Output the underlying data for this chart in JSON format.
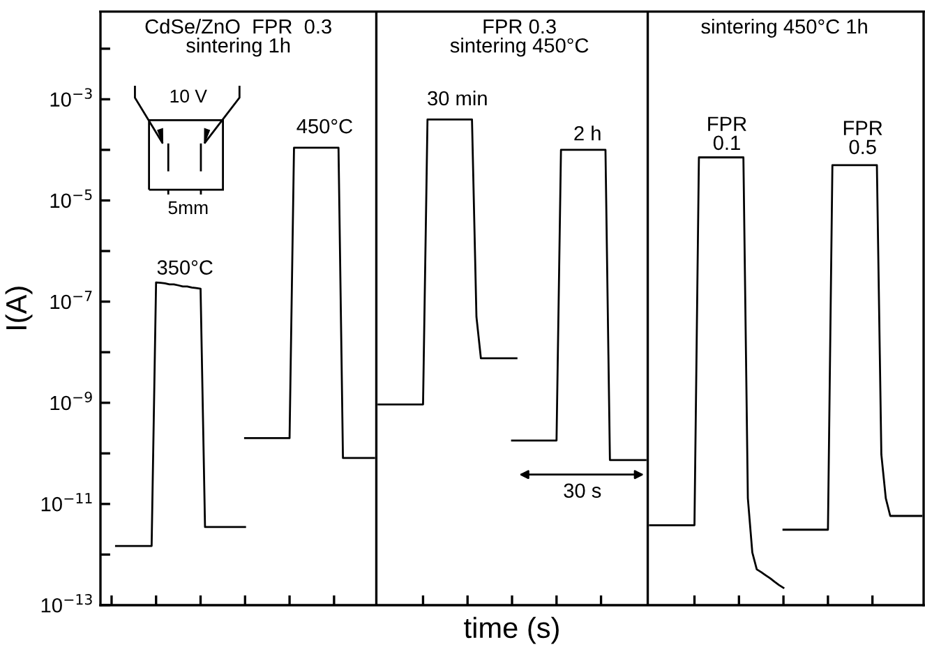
{
  "chart_data": {
    "type": "line",
    "xlabel": "time (s)",
    "ylabel": "I(A)",
    "log": "y",
    "tick_labels": "y",
    "categories": [
      null,
      null,
      null,
      null,
      null,
      null,
      null,
      null,
      null,
      null,
      null,
      null,
      null,
      null,
      null,
      null,
      null,
      null,
      null,
      null,
      null,
      null,
      null,
      null,
      null,
      null,
      null,
      null,
      null,
      null,
      null,
      null,
      null,
      null,
      null,
      null,
      null,
      null,
      null,
      null,
      null,
      null,
      null,
      null,
      null,
      null,
      null,
      null,
      null,
      null,
      null,
      null,
      null,
      null,
      null,
      null,
      null,
      null,
      null,
      null,
      null,
      null,
      null,
      null,
      null,
      null,
      null,
      null,
      null,
      null,
      null,
      null,
      null,
      null,
      null,
      null,
      null,
      null,
      null,
      null,
      null,
      null,
      null,
      null,
      null,
      null,
      null,
      null,
      null,
      null,
      null,
      null,
      null,
      null,
      null,
      null,
      null,
      null,
      null,
      null,
      null,
      null,
      null,
      null,
      null,
      null,
      null,
      null,
      null,
      null,
      null,
      null,
      null,
      null,
      null,
      null,
      null,
      null,
      null,
      null,
      null,
      null,
      null,
      null,
      null,
      null,
      null,
      null,
      null,
      null,
      null,
      null,
      null,
      null,
      null,
      null,
      null,
      null,
      null,
      null,
      null,
      null,
      null,
      null,
      null,
      null,
      null,
      null,
      null,
      null,
      null,
      null,
      null,
      null,
      null,
      null,
      null,
      null,
      null,
      null,
      null,
      null,
      null,
      null,
      null,
      null,
      null,
      null,
      null,
      null,
      null,
      null,
      null,
      null,
      null,
      null,
      null,
      null,
      null,
      null,
      null,
      null,
      null,
      null,
      null
    ],
    "ylim": [
      1e-13,
      0.054
    ],
    "yticks": [
      {
        "value": 1e-13,
        "label": "10$^{−13}$"
      },
      {
        "value": 1e-12,
        "label": null
      },
      {
        "value": 1e-11,
        "label": "10$^{−11}$"
      },
      {
        "value": 1e-10,
        "label": null
      },
      {
        "value": 1e-09,
        "label": "10$^{−9}$"
      },
      {
        "value": 1e-08,
        "label": null
      },
      {
        "value": 1e-07,
        "label": "10$^{−7}$"
      },
      {
        "value": 1e-06,
        "label": null
      },
      {
        "value": 1e-05,
        "label": "10$^{−5}$"
      },
      {
        "value": 0.0001,
        "label": null
      },
      {
        "value": 0.001,
        "label": "10$^{−3}$"
      },
      {
        "value": 0.01,
        "label": null
      }
    ],
    "series": [
      {
        "color": "#000000",
        "values": [
          null,
          null,
          null,
          1.48e-12,
          1.48e-12,
          1.48e-12,
          1.48e-12,
          1.48e-12,
          1.48e-12,
          1.48e-12,
          1.48e-12,
          1.48e-12,
          2.4e-07,
          2.35e-07,
          2.3e-07,
          2.2e-07,
          2.2e-07,
          2.1e-07,
          2e-07,
          2e-07,
          1.9e-07,
          1.85e-07,
          1.8e-07,
          3.5e-12,
          3.5e-12,
          3.5e-12,
          3.5e-12,
          3.5e-12,
          3.5e-12,
          3.5e-12,
          3.5e-12,
          3.5e-12,
          3.5e-12,
          null,
          null,
          null,
          null,
          null,
          null,
          null,
          null,
          null,
          null,
          null,
          null,
          null,
          null,
          null,
          null,
          null,
          null,
          null,
          null,
          null,
          null,
          null,
          null,
          null,
          null,
          null,
          null,
          null,
          null,
          null,
          null,
          null,
          null,
          null,
          null,
          null,
          null,
          null,
          null,
          null,
          null,
          null,
          null,
          null,
          null,
          null,
          null,
          null,
          null,
          null,
          null,
          null,
          null,
          null,
          null,
          null,
          null,
          null,
          null,
          null,
          null,
          null,
          null,
          null,
          null,
          null,
          null,
          null,
          null,
          null,
          null,
          null,
          null,
          null,
          null,
          null,
          null,
          null,
          null,
          null,
          null,
          null,
          null,
          null,
          null,
          null,
          null,
          null,
          null,
          null,
          null,
          null,
          null,
          null,
          null,
          null,
          null,
          null,
          null,
          null,
          null,
          null,
          null,
          null,
          null,
          null,
          null,
          null,
          null,
          null,
          null,
          null,
          null,
          null,
          null,
          null,
          null,
          null,
          null,
          null,
          null,
          null,
          null,
          null,
          null,
          null,
          null,
          null,
          null,
          null,
          null,
          null,
          null,
          null,
          null,
          null,
          null,
          null,
          null,
          null,
          null,
          null,
          null,
          null,
          null,
          null,
          null,
          null,
          null,
          null,
          null
        ]
      },
      {
        "color": "#000000",
        "values": [
          null,
          null,
          null,
          null,
          null,
          null,
          null,
          null,
          null,
          null,
          null,
          null,
          null,
          null,
          null,
          null,
          null,
          null,
          null,
          null,
          null,
          null,
          null,
          null,
          null,
          null,
          null,
          null,
          null,
          null,
          null,
          null,
          2e-10,
          2e-10,
          2e-10,
          2e-10,
          2e-10,
          2e-10,
          2e-10,
          2e-10,
          2e-10,
          2e-10,
          2e-10,
          0.00011,
          0.00011,
          0.00011,
          0.00011,
          0.00011,
          0.00011,
          0.00011,
          0.00011,
          0.00011,
          0.00011,
          0.00011,
          8.1e-11,
          8.1e-11,
          8.1e-11,
          8.1e-11,
          8.1e-11,
          8.1e-11,
          8.1e-11,
          8.1e-11,
          null,
          null,
          null,
          null,
          null,
          null,
          null,
          null,
          null,
          null,
          null,
          null,
          null,
          null,
          null,
          null,
          null,
          null,
          null,
          null,
          null,
          null,
          null,
          null,
          null,
          null,
          null,
          null,
          null,
          null,
          null,
          null,
          null,
          null,
          null,
          null,
          null,
          null,
          null,
          null,
          null,
          null,
          null,
          null,
          null,
          null,
          null,
          null,
          null,
          null,
          null,
          null,
          null,
          null,
          null,
          null,
          null,
          null,
          null,
          null,
          null,
          null,
          null,
          null,
          null,
          null,
          null,
          null,
          null,
          null,
          null,
          null,
          null,
          null,
          null,
          null,
          null,
          null,
          null,
          null,
          null,
          null,
          null,
          null,
          null,
          null,
          null,
          null,
          null,
          null,
          null,
          null,
          null,
          null,
          null,
          null,
          null,
          null,
          null,
          null,
          null,
          null,
          null,
          null,
          null,
          null,
          null,
          null,
          null,
          null,
          null,
          null,
          null,
          null,
          null,
          null,
          null,
          null,
          null,
          null,
          null,
          null,
          null
        ]
      },
      {
        "color": "#000000",
        "values": [
          null,
          null,
          null,
          null,
          null,
          null,
          null,
          null,
          null,
          null,
          null,
          null,
          null,
          null,
          null,
          null,
          null,
          null,
          null,
          null,
          null,
          null,
          null,
          null,
          null,
          null,
          null,
          null,
          null,
          null,
          null,
          null,
          null,
          null,
          null,
          null,
          null,
          null,
          null,
          null,
          null,
          null,
          null,
          null,
          null,
          null,
          null,
          null,
          null,
          null,
          null,
          null,
          null,
          null,
          null,
          null,
          null,
          null,
          null,
          null,
          null,
          null,
          9.3e-10,
          9.3e-10,
          9.3e-10,
          9.3e-10,
          9.3e-10,
          9.3e-10,
          9.3e-10,
          9.3e-10,
          9.3e-10,
          9.3e-10,
          9.3e-10,
          0.0004,
          0.0004,
          0.0004,
          0.0004,
          0.0004,
          0.0004,
          0.0004,
          0.0004,
          0.0004,
          0.0004,
          0.0004,
          5e-08,
          7.6e-09,
          7.6e-09,
          7.6e-09,
          7.6e-09,
          7.6e-09,
          7.6e-09,
          7.6e-09,
          7.6e-09,
          7.6e-09,
          null,
          null,
          null,
          null,
          null,
          null,
          null,
          null,
          null,
          null,
          null,
          null,
          null,
          null,
          null,
          null,
          null,
          null,
          null,
          null,
          null,
          null,
          null,
          null,
          null,
          null,
          null,
          null,
          null,
          null,
          null,
          null,
          null,
          null,
          null,
          null,
          null,
          null,
          null,
          null,
          null,
          null,
          null,
          null,
          null,
          null,
          null,
          null,
          null,
          null,
          null,
          null,
          null,
          null,
          null,
          null,
          null,
          null,
          null,
          null,
          null,
          null,
          null,
          null,
          null,
          null,
          null,
          null,
          null,
          null,
          null,
          null,
          null,
          null,
          null,
          null,
          null,
          null,
          null,
          null,
          null,
          null,
          null,
          null,
          null,
          null,
          null,
          null,
          null,
          null,
          null
        ]
      },
      {
        "color": "#000000",
        "values": [
          null,
          null,
          null,
          null,
          null,
          null,
          null,
          null,
          null,
          null,
          null,
          null,
          null,
          null,
          null,
          null,
          null,
          null,
          null,
          null,
          null,
          null,
          null,
          null,
          null,
          null,
          null,
          null,
          null,
          null,
          null,
          null,
          null,
          null,
          null,
          null,
          null,
          null,
          null,
          null,
          null,
          null,
          null,
          null,
          null,
          null,
          null,
          null,
          null,
          null,
          null,
          null,
          null,
          null,
          null,
          null,
          null,
          null,
          null,
          null,
          null,
          null,
          null,
          null,
          null,
          null,
          null,
          null,
          null,
          null,
          null,
          null,
          null,
          null,
          null,
          null,
          null,
          null,
          null,
          null,
          null,
          null,
          null,
          null,
          null,
          null,
          null,
          null,
          null,
          null,
          null,
          null,
          1.8e-10,
          1.8e-10,
          1.8e-10,
          1.8e-10,
          1.8e-10,
          1.8e-10,
          1.8e-10,
          1.8e-10,
          1.8e-10,
          1.8e-10,
          1.8e-10,
          0.0001,
          0.0001,
          0.0001,
          0.0001,
          0.0001,
          0.0001,
          0.0001,
          0.0001,
          0.0001,
          0.0001,
          0.0001,
          7.4e-11,
          7.4e-11,
          7.4e-11,
          7.4e-11,
          7.4e-11,
          7.4e-11,
          7.4e-11,
          7.4e-11,
          7.4e-11,
          null,
          null,
          null,
          null,
          null,
          null,
          null,
          null,
          null,
          null,
          null,
          null,
          null,
          null,
          null,
          null,
          null,
          null,
          null,
          null,
          null,
          null,
          null,
          null,
          null,
          null,
          null,
          null,
          null,
          null,
          null,
          null,
          null,
          null,
          null,
          null,
          null,
          null,
          null,
          null,
          null,
          null,
          null,
          null,
          null,
          null,
          null,
          null,
          null,
          null,
          null,
          null,
          null,
          null,
          null,
          null,
          null,
          null,
          null,
          null,
          null,
          null
        ]
      },
      {
        "color": "#000000",
        "values": [
          null,
          null,
          null,
          null,
          null,
          null,
          null,
          null,
          null,
          null,
          null,
          null,
          null,
          null,
          null,
          null,
          null,
          null,
          null,
          null,
          null,
          null,
          null,
          null,
          null,
          null,
          null,
          null,
          null,
          null,
          null,
          null,
          null,
          null,
          null,
          null,
          null,
          null,
          null,
          null,
          null,
          null,
          null,
          null,
          null,
          null,
          null,
          null,
          null,
          null,
          null,
          null,
          null,
          null,
          null,
          null,
          null,
          null,
          null,
          null,
          null,
          null,
          null,
          null,
          null,
          null,
          null,
          null,
          null,
          null,
          null,
          null,
          null,
          null,
          null,
          null,
          null,
          null,
          null,
          null,
          null,
          null,
          null,
          null,
          null,
          null,
          null,
          null,
          null,
          null,
          null,
          null,
          null,
          null,
          null,
          null,
          null,
          null,
          null,
          null,
          null,
          null,
          null,
          null,
          null,
          null,
          null,
          null,
          null,
          null,
          null,
          null,
          null,
          null,
          null,
          null,
          null,
          null,
          null,
          null,
          null,
          null,
          null,
          3.8e-12,
          3.8e-12,
          3.8e-12,
          3.8e-12,
          3.8e-12,
          3.8e-12,
          3.8e-12,
          3.8e-12,
          3.8e-12,
          3.8e-12,
          3.8e-12,
          7.1e-05,
          7.1e-05,
          7.1e-05,
          7.1e-05,
          7.1e-05,
          7.1e-05,
          7.1e-05,
          7.1e-05,
          7.1e-05,
          7.1e-05,
          7.1e-05,
          1.3e-11,
          1.1e-12,
          5.1e-13,
          4.5e-13,
          3.9e-13,
          3.4e-13,
          2.9e-13,
          2.5e-13,
          2.2e-13,
          null,
          null,
          null,
          null,
          null,
          null,
          null,
          null,
          null,
          null,
          null,
          null,
          null,
          null,
          null,
          null,
          null,
          null,
          null,
          null,
          null,
          null,
          null,
          null,
          null,
          null,
          null,
          null,
          null,
          null,
          null
        ]
      },
      {
        "color": "#000000",
        "values": [
          null,
          null,
          null,
          null,
          null,
          null,
          null,
          null,
          null,
          null,
          null,
          null,
          null,
          null,
          null,
          null,
          null,
          null,
          null,
          null,
          null,
          null,
          null,
          null,
          null,
          null,
          null,
          null,
          null,
          null,
          null,
          null,
          null,
          null,
          null,
          null,
          null,
          null,
          null,
          null,
          null,
          null,
          null,
          null,
          null,
          null,
          null,
          null,
          null,
          null,
          null,
          null,
          null,
          null,
          null,
          null,
          null,
          null,
          null,
          null,
          null,
          null,
          null,
          null,
          null,
          null,
          null,
          null,
          null,
          null,
          null,
          null,
          null,
          null,
          null,
          null,
          null,
          null,
          null,
          null,
          null,
          null,
          null,
          null,
          null,
          null,
          null,
          null,
          null,
          null,
          null,
          null,
          null,
          null,
          null,
          null,
          null,
          null,
          null,
          null,
          null,
          null,
          null,
          null,
          null,
          null,
          null,
          null,
          null,
          null,
          null,
          null,
          null,
          null,
          null,
          null,
          null,
          null,
          null,
          null,
          null,
          null,
          null,
          null,
          null,
          null,
          null,
          null,
          null,
          null,
          null,
          null,
          null,
          null,
          null,
          null,
          null,
          null,
          null,
          null,
          null,
          null,
          null,
          null,
          null,
          null,
          null,
          null,
          null,
          null,
          null,
          null,
          null,
          3.1e-12,
          3.1e-12,
          3.1e-12,
          3.1e-12,
          3.1e-12,
          3.1e-12,
          3.1e-12,
          3.1e-12,
          3.1e-12,
          3.1e-12,
          3.1e-12,
          5e-05,
          5e-05,
          5e-05,
          5e-05,
          5e-05,
          5e-05,
          5e-05,
          5e-05,
          5e-05,
          5e-05,
          5e-05,
          9.5e-11,
          1.3e-11,
          5.8e-12,
          5.8e-12,
          5.8e-12,
          5.8e-12,
          5.8e-12,
          5.8e-12,
          5.8e-12,
          5.8e-12
        ]
      }
    ],
    "annotations": [
      "CdSe/ZnO  FPR  0.3\nsintering 1h",
      "FPR 0.3\nsintering 450°C",
      "sintering 450°C 1h",
      "10 V",
      "5mm",
      "350°C",
      "450°C",
      "30 min",
      "2 h",
      "30 s",
      "FPR\n0.1",
      "FPR\n0.5"
    ]
  }
}
